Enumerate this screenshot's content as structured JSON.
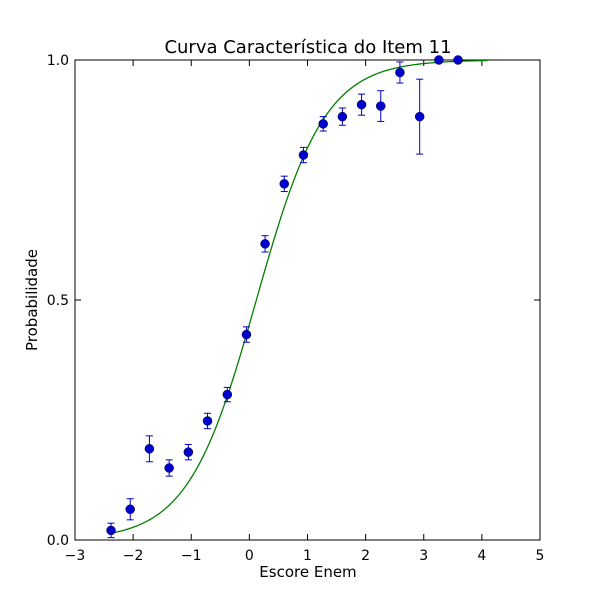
{
  "chart_data": {
    "type": "scatter",
    "title": "Curva Característica do Item 11",
    "xlabel": "Escore Enem",
    "ylabel": "Probabilidade",
    "xlim": [
      -3,
      5
    ],
    "ylim": [
      0,
      1
    ],
    "xticks": [
      -3,
      -2,
      -1,
      0,
      1,
      2,
      3,
      4,
      5
    ],
    "xtick_labels": [
      "−3",
      "−2",
      "−1",
      "0",
      "1",
      "2",
      "3",
      "4",
      "5"
    ],
    "yticks": [
      0,
      0.5,
      1
    ],
    "ytick_labels": [
      "0.0",
      "0.5",
      "1.0"
    ],
    "grid": false,
    "colors": {
      "points": "#0000cc",
      "curve": "#008000"
    },
    "series": [
      {
        "type": "scatter-errorbar",
        "x": [
          -2.38,
          -2.05,
          -1.72,
          -1.38,
          -1.05,
          -0.72,
          -0.38,
          -0.05,
          0.27,
          0.6,
          0.93,
          1.27,
          1.6,
          1.93,
          2.26,
          2.59,
          2.93,
          3.26,
          3.59
        ],
        "y": [
          0.02,
          0.064,
          0.19,
          0.15,
          0.183,
          0.248,
          0.303,
          0.428,
          0.617,
          0.742,
          0.802,
          0.867,
          0.882,
          0.907,
          0.904,
          0.974,
          0.882,
          1.0,
          1.0
        ],
        "yerr": [
          0.015,
          0.022,
          0.027,
          0.017,
          0.016,
          0.016,
          0.015,
          0.016,
          0.017,
          0.016,
          0.016,
          0.015,
          0.018,
          0.022,
          0.032,
          0.022,
          0.078,
          0.0,
          0.0
        ]
      },
      {
        "type": "line",
        "model": "logistic",
        "a": 1.7,
        "b": 0.12,
        "x_range": [
          -2.4,
          4.1
        ]
      }
    ]
  }
}
